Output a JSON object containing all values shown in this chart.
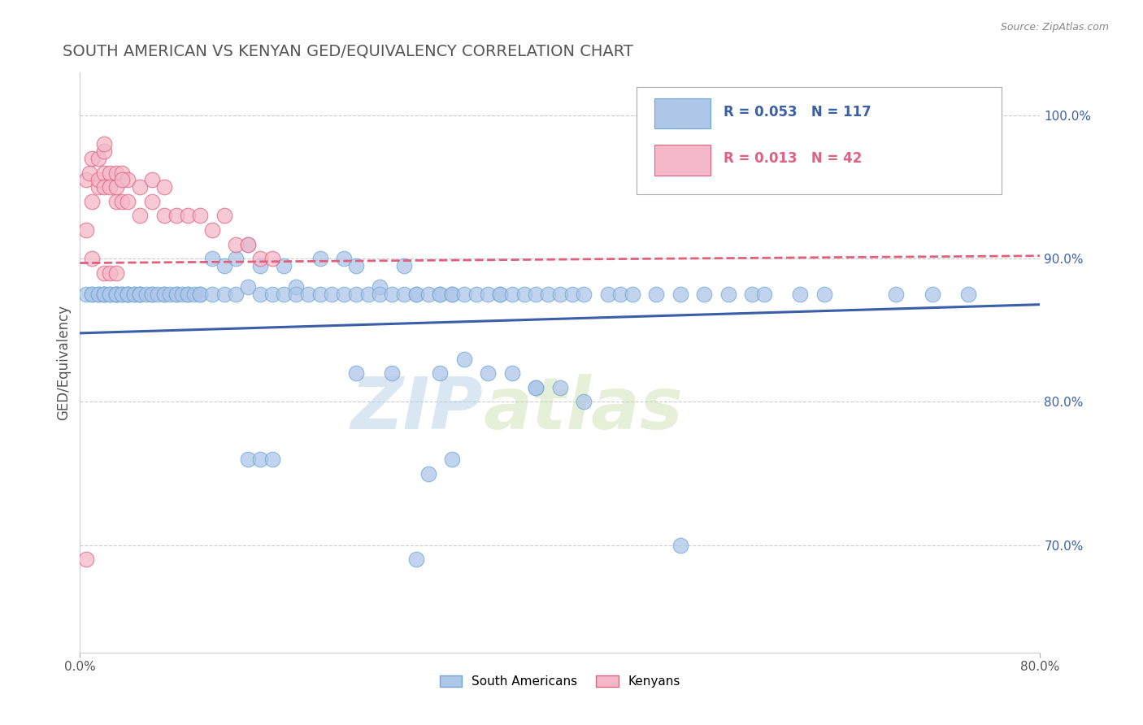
{
  "title": "SOUTH AMERICAN VS KENYAN GED/EQUIVALENCY CORRELATION CHART",
  "source": "Source: ZipAtlas.com",
  "ylabel_label": "GED/Equivalency",
  "xlim": [
    0.0,
    0.8
  ],
  "ylim": [
    0.625,
    1.03
  ],
  "ytick_right_vals": [
    0.7,
    0.8,
    0.9,
    1.0
  ],
  "ytick_right_labels": [
    "70.0%",
    "80.0%",
    "90.0%",
    "100.0%"
  ],
  "blue_color": "#aec6e8",
  "blue_edge": "#6fa8d4",
  "pink_color": "#f4b8c8",
  "pink_edge": "#e06080",
  "blue_line_color": "#3a5fa8",
  "pink_line_color": "#e06080",
  "legend_blue_R": "0.053",
  "legend_blue_N": "117",
  "legend_pink_R": "0.013",
  "legend_pink_N": "42",
  "legend_label_blue": "South Americans",
  "legend_label_pink": "Kenyans",
  "watermark_zip": "ZIP",
  "watermark_atlas": "atlas",
  "grid_color": "#cccccc",
  "background_color": "#ffffff",
  "title_color": "#555555",
  "sa_x": [
    0.005,
    0.01,
    0.01,
    0.015,
    0.015,
    0.02,
    0.02,
    0.02,
    0.025,
    0.025,
    0.03,
    0.03,
    0.03,
    0.03,
    0.035,
    0.035,
    0.04,
    0.04,
    0.04,
    0.045,
    0.045,
    0.05,
    0.05,
    0.05,
    0.055,
    0.06,
    0.06,
    0.065,
    0.07,
    0.07,
    0.075,
    0.08,
    0.08,
    0.085,
    0.09,
    0.09,
    0.095,
    0.1,
    0.1,
    0.11,
    0.11,
    0.12,
    0.12,
    0.13,
    0.13,
    0.14,
    0.14,
    0.15,
    0.15,
    0.16,
    0.17,
    0.17,
    0.18,
    0.18,
    0.19,
    0.2,
    0.2,
    0.21,
    0.22,
    0.22,
    0.23,
    0.23,
    0.24,
    0.25,
    0.25,
    0.26,
    0.27,
    0.27,
    0.28,
    0.28,
    0.29,
    0.3,
    0.3,
    0.31,
    0.31,
    0.32,
    0.33,
    0.34,
    0.35,
    0.35,
    0.36,
    0.37,
    0.38,
    0.39,
    0.4,
    0.41,
    0.42,
    0.44,
    0.45,
    0.46,
    0.48,
    0.5,
    0.52,
    0.54,
    0.56,
    0.57,
    0.6,
    0.62,
    0.68,
    0.71,
    0.74,
    0.5,
    0.28,
    0.3,
    0.32,
    0.34,
    0.23,
    0.26,
    0.38,
    0.4,
    0.42,
    0.36,
    0.38,
    0.14,
    0.15,
    0.16,
    0.29,
    0.31
  ],
  "sa_y": [
    0.875,
    0.875,
    0.875,
    0.875,
    0.875,
    0.875,
    0.875,
    0.875,
    0.875,
    0.875,
    0.875,
    0.875,
    0.875,
    0.875,
    0.875,
    0.875,
    0.875,
    0.875,
    0.875,
    0.875,
    0.875,
    0.875,
    0.875,
    0.875,
    0.875,
    0.875,
    0.875,
    0.875,
    0.875,
    0.875,
    0.875,
    0.875,
    0.875,
    0.875,
    0.875,
    0.875,
    0.875,
    0.875,
    0.875,
    0.9,
    0.875,
    0.875,
    0.895,
    0.9,
    0.875,
    0.91,
    0.88,
    0.895,
    0.875,
    0.875,
    0.895,
    0.875,
    0.88,
    0.875,
    0.875,
    0.9,
    0.875,
    0.875,
    0.9,
    0.875,
    0.875,
    0.895,
    0.875,
    0.88,
    0.875,
    0.875,
    0.875,
    0.895,
    0.875,
    0.875,
    0.875,
    0.875,
    0.875,
    0.875,
    0.875,
    0.875,
    0.875,
    0.875,
    0.875,
    0.875,
    0.875,
    0.875,
    0.875,
    0.875,
    0.875,
    0.875,
    0.875,
    0.875,
    0.875,
    0.875,
    0.875,
    0.875,
    0.875,
    0.875,
    0.875,
    0.875,
    0.875,
    0.875,
    0.875,
    0.875,
    0.875,
    0.7,
    0.69,
    0.82,
    0.83,
    0.82,
    0.82,
    0.82,
    0.81,
    0.81,
    0.8,
    0.82,
    0.81,
    0.76,
    0.76,
    0.76,
    0.75,
    0.76
  ],
  "ken_x": [
    0.005,
    0.008,
    0.01,
    0.01,
    0.015,
    0.015,
    0.015,
    0.02,
    0.02,
    0.02,
    0.025,
    0.025,
    0.03,
    0.03,
    0.03,
    0.035,
    0.035,
    0.04,
    0.04,
    0.05,
    0.05,
    0.06,
    0.06,
    0.07,
    0.07,
    0.08,
    0.09,
    0.1,
    0.11,
    0.12,
    0.13,
    0.14,
    0.15,
    0.16,
    0.02,
    0.035,
    0.005,
    0.01,
    0.02,
    0.025,
    0.03,
    0.005
  ],
  "ken_y": [
    0.955,
    0.96,
    0.97,
    0.94,
    0.95,
    0.97,
    0.955,
    0.96,
    0.95,
    0.975,
    0.96,
    0.95,
    0.94,
    0.96,
    0.95,
    0.94,
    0.96,
    0.94,
    0.955,
    0.93,
    0.95,
    0.94,
    0.955,
    0.93,
    0.95,
    0.93,
    0.93,
    0.93,
    0.92,
    0.93,
    0.91,
    0.91,
    0.9,
    0.9,
    0.98,
    0.955,
    0.92,
    0.9,
    0.89,
    0.89,
    0.89,
    0.69
  ],
  "blue_trend_x0": 0.0,
  "blue_trend_y0": 0.848,
  "blue_trend_x1": 0.8,
  "blue_trend_y1": 0.868,
  "pink_trend_x0": 0.0,
  "pink_trend_y0": 0.897,
  "pink_trend_x1": 0.8,
  "pink_trend_y1": 0.902
}
